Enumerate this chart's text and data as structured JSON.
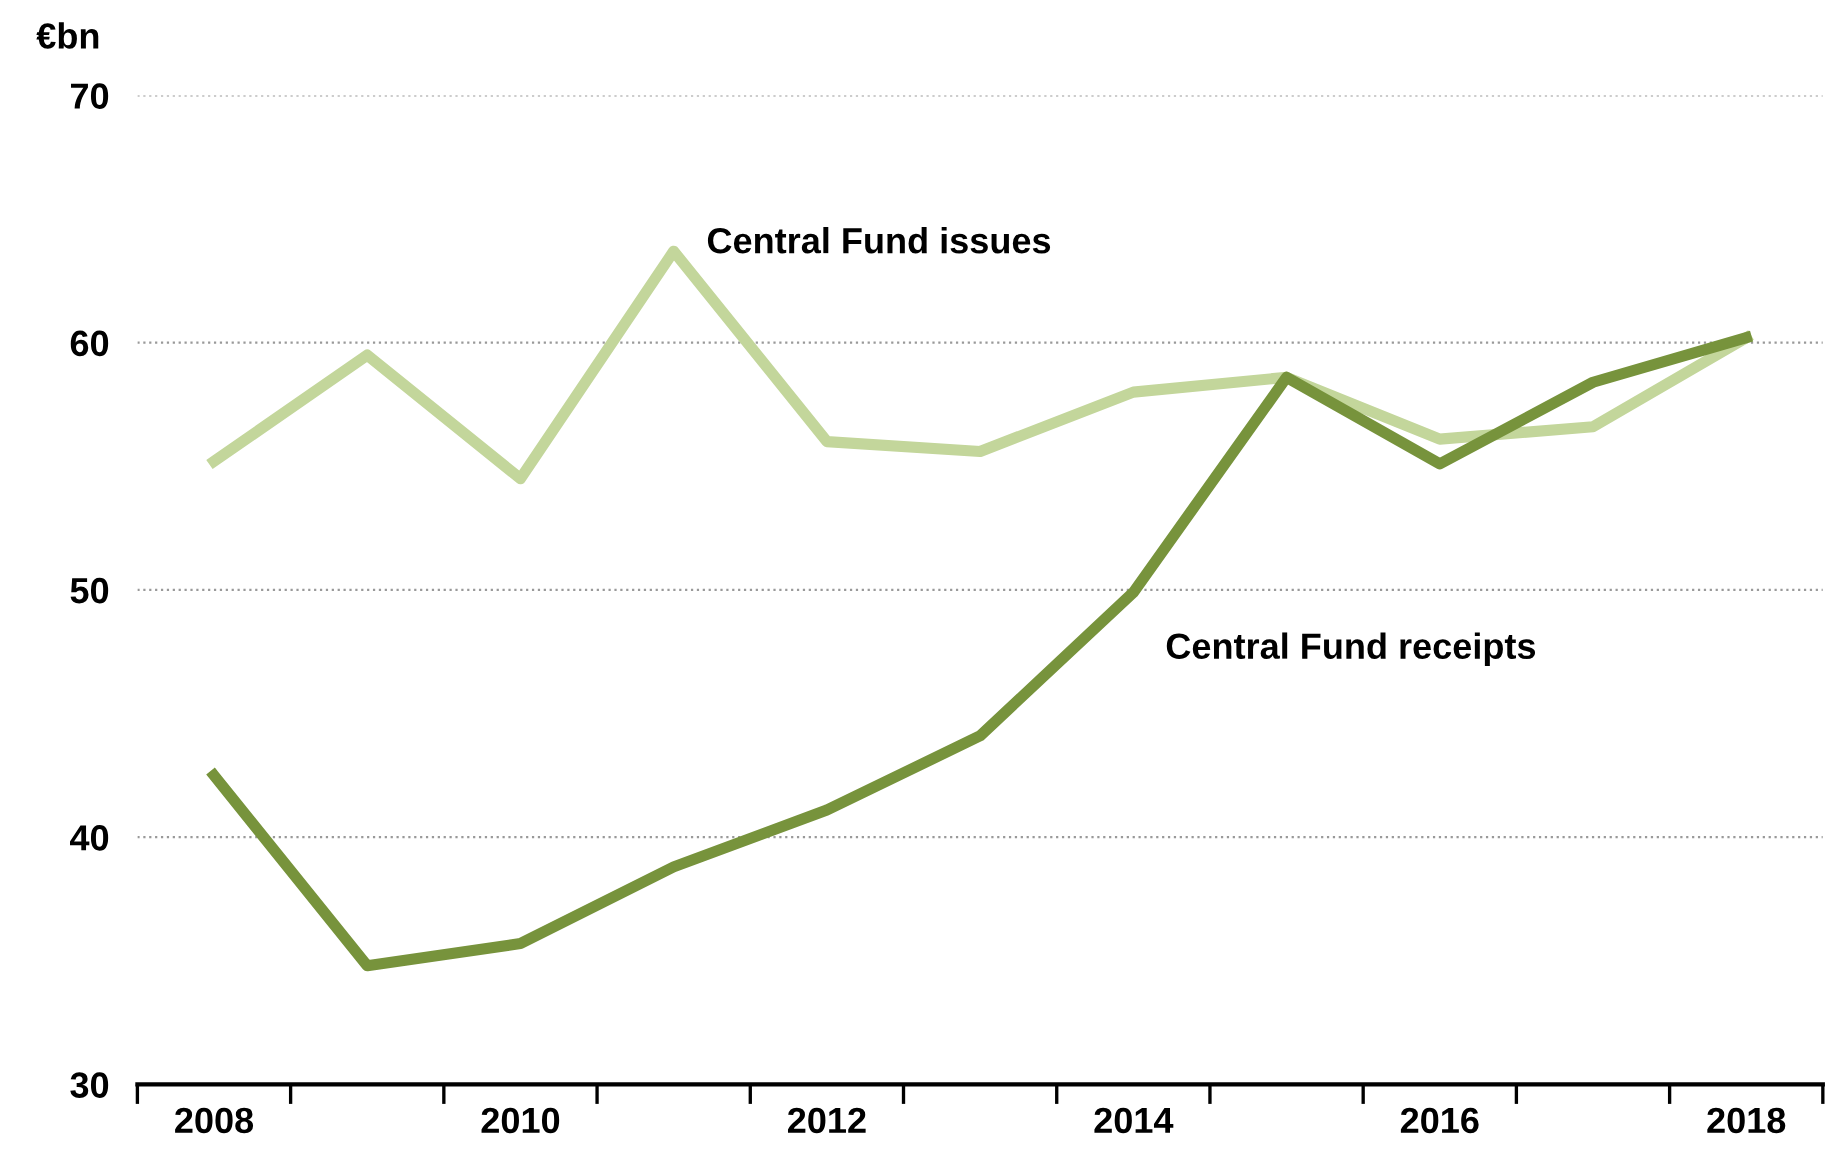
{
  "chart_data": {
    "type": "line",
    "ylabel": "€bn",
    "categories": [
      "2008",
      null,
      "2010",
      null,
      "2012",
      null,
      "2014",
      null,
      "2016",
      null,
      "2018"
    ],
    "series": [
      {
        "name": "Central Fund issues",
        "color": "#c3d69b",
        "values": [
          55.2,
          59.5,
          54.5,
          63.7,
          56.0,
          55.6,
          58.0,
          58.6,
          56.1,
          56.6,
          60.2
        ]
      },
      {
        "name": "Central Fund receipts",
        "color": "#77933c",
        "values": [
          42.5,
          34.8,
          35.7,
          38.8,
          41.1,
          44.1,
          49.9,
          58.6,
          55.1,
          58.4,
          60.2
        ]
      }
    ],
    "ylim": [
      30,
      70
    ],
    "yticks": [
      30,
      40,
      50,
      60,
      70
    ],
    "grid": "y",
    "legend": false,
    "marker": "none",
    "line_style": "solid"
  }
}
